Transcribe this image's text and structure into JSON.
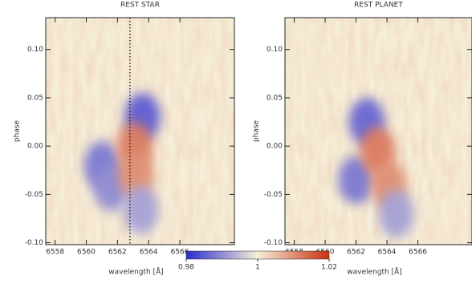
{
  "chart_data": [
    {
      "type": "heatmap",
      "title": "REST STAR",
      "xlabel": "wavelength [Å]",
      "ylabel": "phase",
      "xlim": [
        6557.4,
        6569.5
      ],
      "xticks": [
        6558,
        6560,
        6562,
        6564,
        6566
      ],
      "ylim": [
        -0.102,
        0.133
      ],
      "yticks": [
        {
          "value": -0.1,
          "label": "-0.10"
        },
        -0.05,
        {
          "value": 0,
          "label": "0.00"
        },
        0.05,
        {
          "value": 0.1,
          "label": "0.10"
        }
      ],
      "vline": 6562.8,
      "features": [
        {
          "x": 6563.6,
          "y": 0.03,
          "value": 0.985
        },
        {
          "x": 6561.0,
          "y": -0.02,
          "value": 0.988
        },
        {
          "x": 6561.6,
          "y": -0.042,
          "value": 0.99
        },
        {
          "x": 6563.1,
          "y": 0.0,
          "value": 1.012
        },
        {
          "x": 6563.2,
          "y": -0.03,
          "value": 1.01
        },
        {
          "x": 6563.5,
          "y": -0.066,
          "value": 0.992
        }
      ]
    },
    {
      "type": "heatmap",
      "title": "REST PLANET",
      "xlabel": "wavelength [Å]",
      "ylabel": "phase",
      "xlim": [
        6557.4,
        6569.5
      ],
      "xticks": [
        6558,
        6560,
        6562,
        6564,
        6566
      ],
      "ylim": [
        -0.102,
        0.133
      ],
      "yticks": [
        {
          "value": -0.1,
          "label": "-0.10"
        },
        -0.05,
        {
          "value": 0,
          "label": "0.00"
        },
        0.05,
        {
          "value": 0.1,
          "label": "0.10"
        }
      ],
      "features": [
        {
          "x": 6562.7,
          "y": 0.025,
          "value": 0.986
        },
        {
          "x": 6562.0,
          "y": -0.035,
          "value": 0.988
        },
        {
          "x": 6563.4,
          "y": -0.005,
          "value": 1.012
        },
        {
          "x": 6564.1,
          "y": -0.04,
          "value": 1.01
        },
        {
          "x": 6564.6,
          "y": -0.07,
          "value": 0.992
        }
      ]
    }
  ],
  "colorbar": {
    "lim": [
      0.98,
      1.02
    ],
    "ticks": [
      0.98,
      1,
      1.02
    ],
    "colors": [
      "#2b2bd0",
      "#f6efd8",
      "#c83010"
    ]
  }
}
